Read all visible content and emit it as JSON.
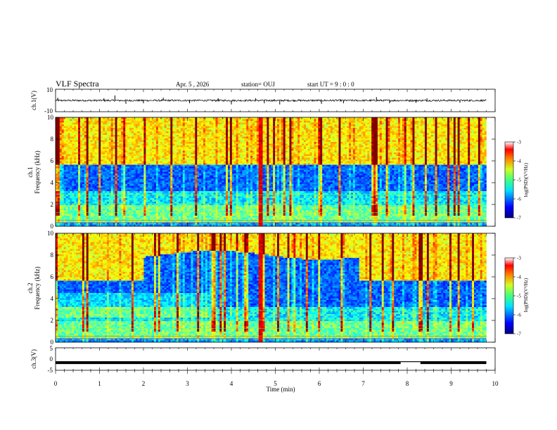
{
  "header": {
    "title": "VLF Spectra",
    "date": "Apr. 5 , 2026",
    "station": "station= OUJ",
    "start": "start  UT  =  9 : 0 : 0"
  },
  "chart_data": [
    {
      "type": "line",
      "name": "ch1-waveform",
      "ylabel": "ch.1(V)",
      "ylim": [
        -10,
        10
      ],
      "yticks": [
        "10",
        "-10"
      ],
      "xlim": [
        0,
        10
      ],
      "data_end_min": 9.8,
      "baseline": 0,
      "spikes": [
        {
          "t": 0.05,
          "v": 2.5
        },
        {
          "t": 1.1,
          "v": 2.0
        },
        {
          "t": 1.35,
          "v": 4.5
        },
        {
          "t": 1.6,
          "v": -3.0
        },
        {
          "t": 2.0,
          "v": -2.5
        },
        {
          "t": 2.45,
          "v": 2.5
        },
        {
          "t": 3.05,
          "v": -2.5
        },
        {
          "t": 3.7,
          "v": 2.0
        },
        {
          "t": 4.0,
          "v": -3.5
        },
        {
          "t": 4.55,
          "v": 2.0
        },
        {
          "t": 4.75,
          "v": -2.5
        },
        {
          "t": 5.1,
          "v": -3.5
        },
        {
          "t": 6.05,
          "v": -3.0
        },
        {
          "t": 6.55,
          "v": -2.5
        },
        {
          "t": 7.3,
          "v": 3.0
        },
        {
          "t": 7.6,
          "v": -2.5
        },
        {
          "t": 8.2,
          "v": -2.0
        },
        {
          "t": 8.45,
          "v": 2.0
        },
        {
          "t": 9.2,
          "v": -2.0
        }
      ]
    },
    {
      "type": "heatmap",
      "name": "ch1-spectrogram",
      "ylabel_line1": "ch.1",
      "ylabel_line2": "Frequency (kHz)",
      "ylim": [
        0,
        10
      ],
      "yticks": [
        "0",
        "2",
        "4",
        "6",
        "8",
        "10"
      ],
      "xlim": [
        0,
        10
      ],
      "data_end_min": 9.8,
      "band_edge_khz": 5.7,
      "colorbar": {
        "label": "log(PSD)(V²/Hz)",
        "range": [
          -7,
          -3
        ],
        "ticks": [
          "-3",
          "-4",
          "-5",
          "-6",
          "-7"
        ]
      }
    },
    {
      "type": "heatmap",
      "name": "ch2-spectrogram",
      "ylabel_line1": "ch.2",
      "ylabel_line2": "Frequency (kHz)",
      "ylim": [
        0,
        10
      ],
      "yticks": [
        "0",
        "2",
        "4",
        "6",
        "8",
        "10"
      ],
      "xlim": [
        0,
        10
      ],
      "data_end_min": 9.8,
      "band_edge_khz": 5.7,
      "colorbar": {
        "label": "log(PSD)(V²/Hz)",
        "range": [
          -7,
          -3
        ],
        "ticks": [
          "-3",
          "-4",
          "-5",
          "-6",
          "-7"
        ]
      }
    },
    {
      "type": "line",
      "name": "ch3-signal",
      "ylabel": "ch.3(V)",
      "ylim": [
        -5,
        5
      ],
      "yticks": [
        "5",
        "0",
        "-5"
      ],
      "xlim": [
        0,
        10
      ],
      "level": -1.6,
      "gap": [
        7.85,
        8.3
      ],
      "data_end_min": 9.8
    }
  ],
  "xaxis": {
    "label": "Time (min)",
    "ticks": [
      "0",
      "1",
      "2",
      "3",
      "4",
      "5",
      "6",
      "7",
      "8",
      "9",
      "10"
    ]
  }
}
